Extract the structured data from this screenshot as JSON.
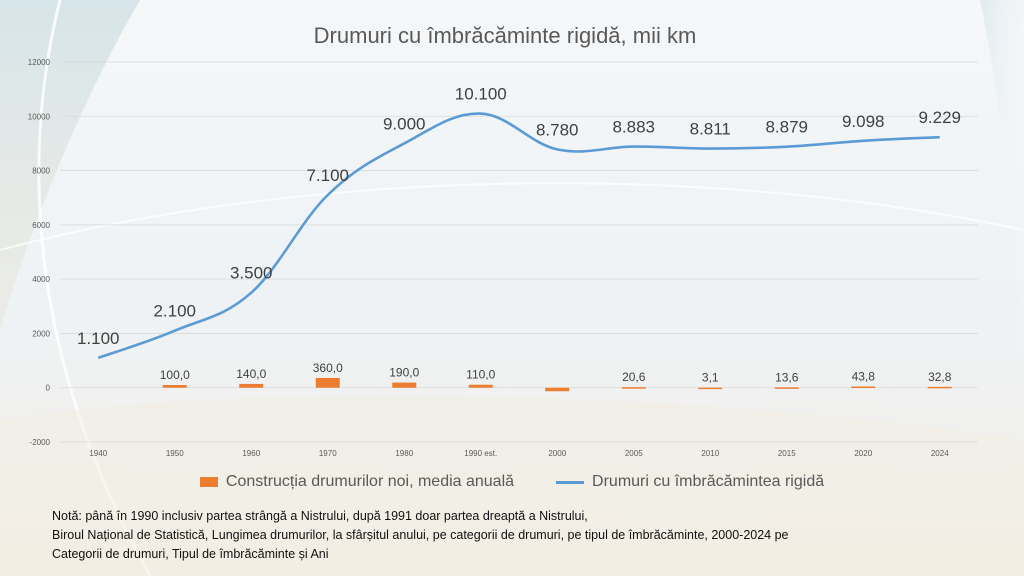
{
  "chart_data": {
    "type": "bar+line",
    "title": "Drumuri cu îmbrăcăminte rigidă, mii km",
    "categories": [
      "1940",
      "1950",
      "1960",
      "1970",
      "1980",
      "1990 est.",
      "2000",
      "2005",
      "2010",
      "2015",
      "2020",
      "2024"
    ],
    "y_ticks": [
      "12000",
      "10000",
      "8000",
      "6000",
      "4000",
      "2000",
      "0",
      "-2000"
    ],
    "ylim": [
      -2000,
      12000
    ],
    "grid": true,
    "legend_position": "bottom",
    "series": [
      {
        "name": "Construcția drumurilor noi, media anuală",
        "type": "bar",
        "color": "#ED7D31",
        "values": [
          null,
          100,
          140,
          360,
          190,
          110,
          -130,
          20.6,
          3.1,
          13.6,
          43.8,
          32.8
        ],
        "labels": [
          "",
          "100,0",
          "140,0",
          "360,0",
          "190,0",
          "110,0",
          "",
          "20,6",
          "3,1",
          "13,6",
          "43,8",
          "32,8"
        ]
      },
      {
        "name": "Drumuri cu îmbrăcămintea rigidă",
        "type": "line",
        "color": "#5B9BD5",
        "values": [
          1100,
          2100,
          3500,
          7100,
          9000,
          10100,
          8780,
          8883,
          8811,
          8879,
          9098,
          9229
        ],
        "labels": [
          "1.100",
          "2.100",
          "3.500",
          "7.100",
          "9.000",
          "10.100",
          "8.780",
          "8.883",
          "8.811",
          "8.879",
          "9.098",
          "9.229"
        ]
      }
    ]
  },
  "note": {
    "line1": "Notă: până în 1990 inclusiv partea strângă a Nistrului, după 1991 doar partea dreaptă a Nistrului,",
    "line2": "Biroul Național de Statistică, Lungimea drumurilor, la sfârșitul anului, pe categorii de drumuri, pe tipul de îmbrăcăminte, 2000-2024 pe",
    "line3": "Categorii de drumuri, Tipul de îmbrăcăminte și Ani"
  }
}
